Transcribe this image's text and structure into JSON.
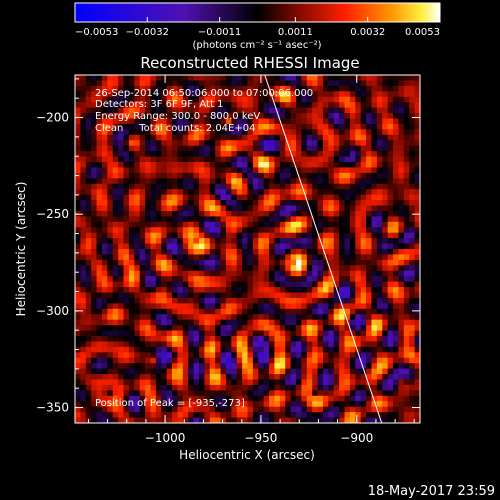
{
  "chart_data": {
    "type": "heatmap",
    "title": "Reconstructed RHESSI Image",
    "xlabel": "Heliocentric X (arcsec)",
    "ylabel": "Heliocentric Y (arcsec)",
    "xlim": [
      -1047,
      -867
    ],
    "ylim": [
      -358,
      -178
    ],
    "x_ticks": [
      -1000,
      -950,
      -900
    ],
    "x_tick_labels": [
      "−1000",
      "−950",
      "−900"
    ],
    "y_ticks": [
      -200,
      -250,
      -300,
      -350
    ],
    "y_tick_labels": [
      "−200",
      "−250",
      "−300",
      "−350"
    ],
    "colorbar": {
      "ticks": [
        -0.0053,
        -0.0032,
        -0.0011,
        0.0011,
        0.0032,
        0.0053
      ],
      "tick_labels": [
        "−0.0053",
        "−0.0032",
        "−0.0011",
        "0.0011",
        "0.0032",
        "0.0053"
      ],
      "label": "(photons cm⁻² s⁻¹ asec⁻²)",
      "range": [
        -0.0053,
        0.0053
      ]
    },
    "annotations": [
      "26-Sep-2014 06:50:06.000 to 07:00:06.000",
      "Detectors: 3F 6F 9F, Att 1",
      "Energy Range: 300.0 - 800.0 keV",
      "Clean     Total counts: 2.04E+04"
    ],
    "peak_label": "Position of Peak = [-935,-273]",
    "limb_line": {
      "x": [
        -948,
        -887
      ],
      "y": [
        -178,
        -358
      ]
    },
    "grid": false,
    "legend": "none"
  },
  "footer": {
    "date": "18-May-2017 23:59"
  }
}
